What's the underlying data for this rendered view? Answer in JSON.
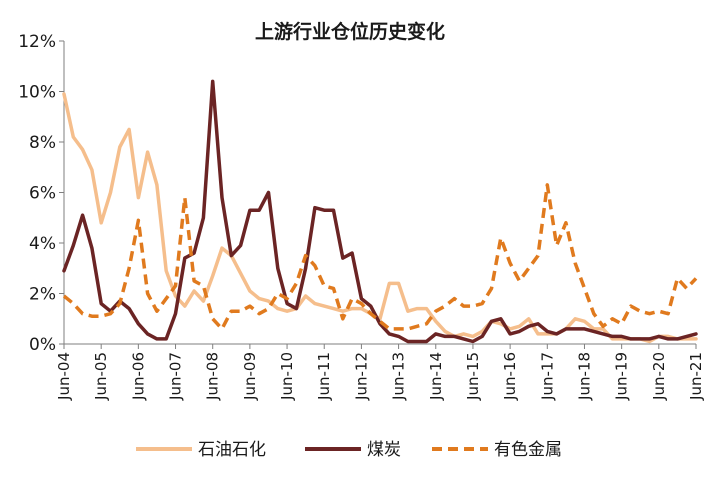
{
  "chart_data": {
    "type": "line",
    "title": "上游行业仓位历史变化",
    "xlabel": "",
    "ylabel": "",
    "x": [
      2004.42,
      2004.67,
      2004.92,
      2005.17,
      2005.42,
      2005.67,
      2005.92,
      2006.17,
      2006.42,
      2006.67,
      2006.92,
      2007.17,
      2007.42,
      2007.67,
      2007.92,
      2008.17,
      2008.42,
      2008.67,
      2008.92,
      2009.17,
      2009.42,
      2009.67,
      2009.92,
      2010.17,
      2010.42,
      2010.67,
      2010.92,
      2011.17,
      2011.42,
      2011.67,
      2011.92,
      2012.17,
      2012.42,
      2012.67,
      2012.92,
      2013.17,
      2013.42,
      2013.67,
      2013.92,
      2014.17,
      2014.42,
      2014.67,
      2014.92,
      2015.17,
      2015.42,
      2015.67,
      2015.92,
      2016.17,
      2016.42,
      2016.67,
      2016.92,
      2017.17,
      2017.42,
      2017.67,
      2017.92,
      2018.17,
      2018.42,
      2018.67,
      2018.92,
      2019.17,
      2019.42,
      2019.67,
      2019.92,
      2020.17,
      2020.42,
      2020.67,
      2020.92,
      2021.17,
      2021.42
    ],
    "x_ticks": [
      {
        "value": 2004.42,
        "label": "Jun-04"
      },
      {
        "value": 2005.42,
        "label": "Jun-05"
      },
      {
        "value": 2006.42,
        "label": "Jun-06"
      },
      {
        "value": 2007.42,
        "label": "Jun-07"
      },
      {
        "value": 2008.42,
        "label": "Jun-08"
      },
      {
        "value": 2009.42,
        "label": "Jun-09"
      },
      {
        "value": 2010.42,
        "label": "Jun-10"
      },
      {
        "value": 2011.42,
        "label": "Jun-11"
      },
      {
        "value": 2012.42,
        "label": "Jun-12"
      },
      {
        "value": 2013.42,
        "label": "Jun-13"
      },
      {
        "value": 2014.42,
        "label": "Jun-14"
      },
      {
        "value": 2015.42,
        "label": "Jun-15"
      },
      {
        "value": 2016.42,
        "label": "Jun-16"
      },
      {
        "value": 2017.42,
        "label": "Jun-17"
      },
      {
        "value": 2018.42,
        "label": "Jun-18"
      },
      {
        "value": 2019.42,
        "label": "Jun-19"
      },
      {
        "value": 2020.42,
        "label": "Jun-20"
      },
      {
        "value": 2021.42,
        "label": "Jun-21"
      }
    ],
    "ylim": [
      0,
      12
    ],
    "y_ticks": [
      {
        "value": 0,
        "label": "0%"
      },
      {
        "value": 2,
        "label": "2%"
      },
      {
        "value": 4,
        "label": "4%"
      },
      {
        "value": 6,
        "label": "6%"
      },
      {
        "value": 8,
        "label": "8%"
      },
      {
        "value": 10,
        "label": "10%"
      },
      {
        "value": 12,
        "label": "12%"
      }
    ],
    "grid": false,
    "legend_position": "bottom",
    "series": [
      {
        "name": "石油石化",
        "color": "#F5BE8C",
        "dash": "solid",
        "values": [
          9.9,
          8.2,
          7.7,
          6.9,
          4.8,
          6.0,
          7.8,
          8.5,
          5.8,
          7.6,
          6.3,
          2.9,
          1.9,
          1.5,
          2.1,
          1.7,
          2.7,
          3.8,
          3.5,
          2.8,
          2.1,
          1.8,
          1.7,
          1.4,
          1.3,
          1.4,
          1.9,
          1.6,
          1.5,
          1.4,
          1.3,
          1.4,
          1.4,
          1.2,
          1.0,
          2.4,
          2.4,
          1.3,
          1.4,
          1.4,
          0.9,
          0.5,
          0.3,
          0.4,
          0.3,
          0.5,
          0.9,
          0.8,
          0.6,
          0.7,
          1.0,
          0.4,
          0.4,
          0.4,
          0.6,
          1.0,
          0.9,
          0.6,
          0.6,
          0.2,
          0.2,
          0.2,
          0.2,
          0.1,
          0.3,
          0.3,
          0.2,
          0.2,
          0.2
        ]
      },
      {
        "name": "煤炭",
        "color": "#6B2424",
        "dash": "solid",
        "values": [
          2.9,
          3.9,
          5.1,
          3.8,
          1.6,
          1.3,
          1.7,
          1.4,
          0.8,
          0.4,
          0.2,
          0.2,
          1.2,
          3.4,
          3.6,
          5.0,
          10.4,
          5.8,
          3.5,
          3.9,
          5.3,
          5.3,
          6.0,
          3.0,
          1.6,
          1.4,
          3.0,
          5.4,
          5.3,
          5.3,
          3.4,
          3.6,
          1.8,
          1.5,
          0.8,
          0.4,
          0.3,
          0.1,
          0.1,
          0.1,
          0.4,
          0.3,
          0.3,
          0.2,
          0.1,
          0.3,
          0.9,
          1.0,
          0.4,
          0.5,
          0.7,
          0.8,
          0.5,
          0.4,
          0.6,
          0.6,
          0.6,
          0.5,
          0.4,
          0.3,
          0.3,
          0.2,
          0.2,
          0.2,
          0.3,
          0.2,
          0.2,
          0.3,
          0.4
        ]
      },
      {
        "name": "有色金属",
        "color": "#E07A1E",
        "dash": "dashed",
        "values": [
          1.9,
          1.6,
          1.2,
          1.1,
          1.1,
          1.2,
          1.6,
          3.0,
          4.9,
          2.0,
          1.3,
          1.8,
          2.3,
          5.8,
          2.5,
          2.3,
          1.0,
          0.6,
          1.3,
          1.3,
          1.5,
          1.2,
          1.4,
          2.0,
          1.8,
          2.4,
          3.5,
          3.1,
          2.3,
          2.2,
          1.0,
          1.8,
          1.6,
          1.2,
          0.9,
          0.6,
          0.6,
          0.6,
          0.7,
          0.8,
          1.3,
          1.5,
          1.8,
          1.5,
          1.5,
          1.6,
          2.2,
          4.2,
          3.2,
          2.5,
          3.0,
          3.5,
          6.3,
          3.9,
          4.8,
          3.2,
          2.2,
          1.2,
          0.7,
          1.0,
          0.8,
          1.5,
          1.3,
          1.2,
          1.3,
          1.2,
          2.6,
          2.2,
          2.6
        ]
      }
    ]
  }
}
